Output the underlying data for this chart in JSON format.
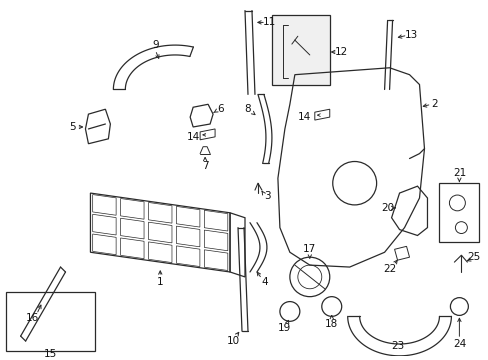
{
  "bg_color": "#ffffff",
  "line_color": "#2a2a2a",
  "label_color": "#111111",
  "lw": 0.9
}
